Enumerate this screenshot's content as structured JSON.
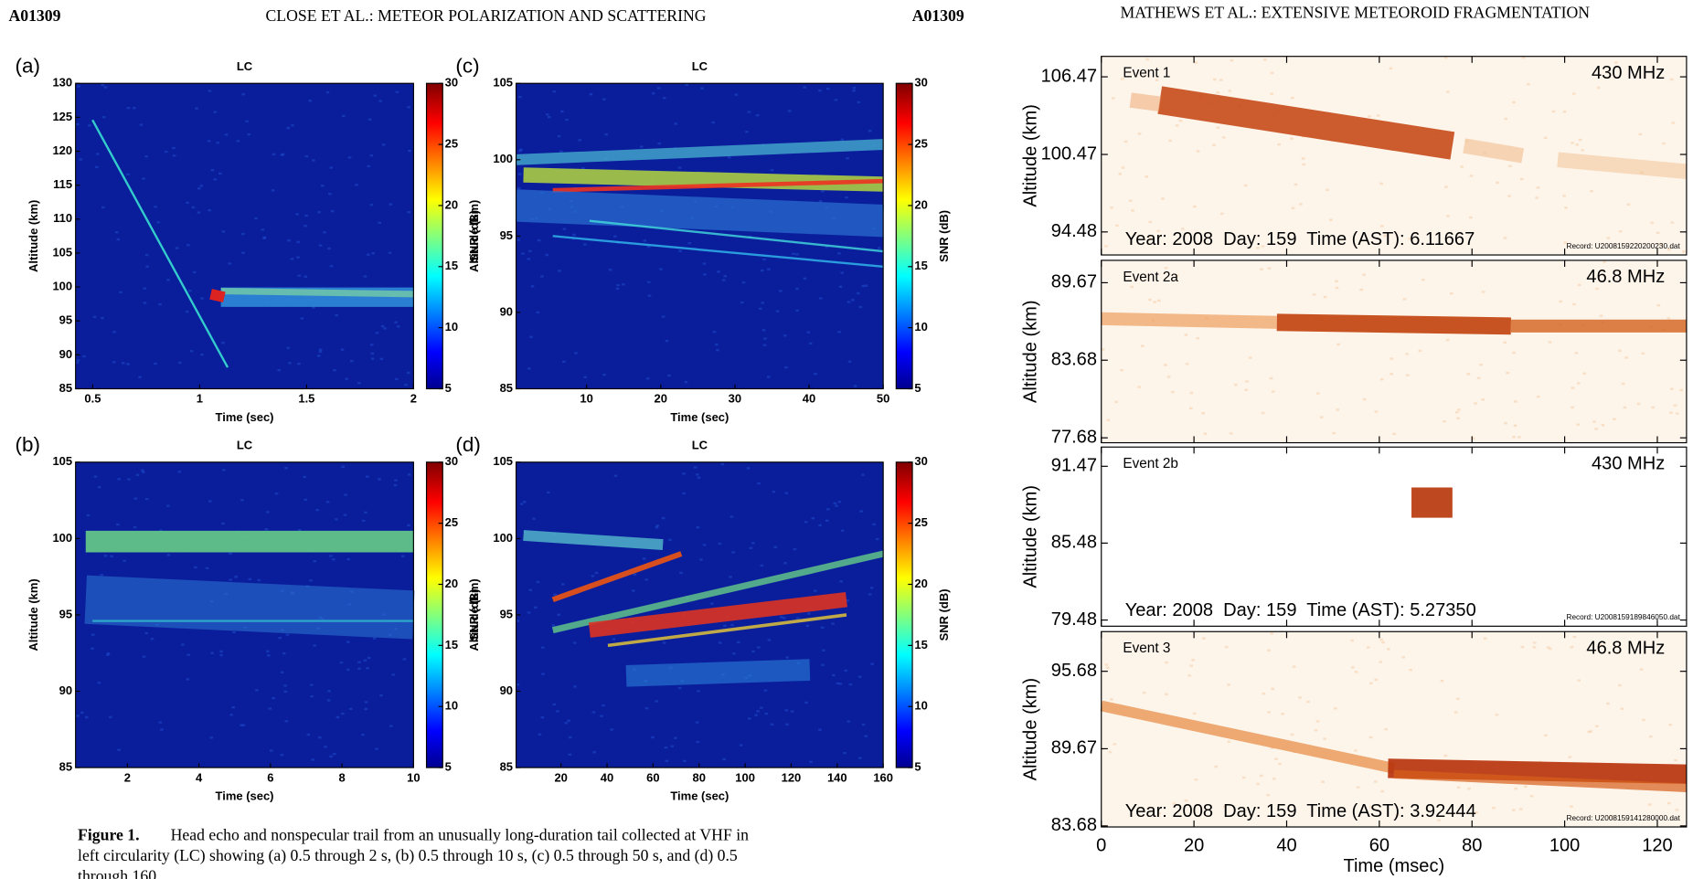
{
  "left_page": {
    "header": {
      "left": "A01309",
      "center": "CLOSE ET AL.: METEOR POLARIZATION AND SCATTERING",
      "right": "A01309"
    },
    "panels": [
      {
        "label": "(a)",
        "title": "LC",
        "xlabel": "Time (sec)",
        "ylabel": "Altitude (km)",
        "colorbar_label": "SNR (dB)",
        "xlim": [
          0.42,
          2
        ],
        "xticks": [
          0.5,
          1,
          1.5,
          2
        ],
        "ylim": [
          85,
          130
        ],
        "yticks": [
          85,
          90,
          95,
          100,
          105,
          110,
          115,
          120,
          125,
          130
        ],
        "clim": [
          5,
          30
        ],
        "cticks": [
          5,
          10,
          15,
          20,
          25,
          30
        ]
      },
      {
        "label": "(b)",
        "title": "LC",
        "xlabel": "Time (sec)",
        "ylabel": "Altitude (km)",
        "colorbar_label": "SNR (dB)",
        "xlim": [
          0.55,
          10
        ],
        "xticks": [
          2,
          4,
          6,
          8,
          10
        ],
        "ylim": [
          85,
          105
        ],
        "yticks": [
          85,
          90,
          95,
          100,
          105
        ],
        "clim": [
          5,
          30
        ],
        "cticks": [
          5,
          10,
          15,
          20,
          25,
          30
        ]
      },
      {
        "label": "(c)",
        "title": "LC",
        "xlabel": "Time (sec)",
        "ylabel": "Altitude (km)",
        "colorbar_label": "SNR (dB)",
        "xlim": [
          0.5,
          50
        ],
        "xticks": [
          10,
          20,
          30,
          40,
          50
        ],
        "ylim": [
          85,
          105
        ],
        "yticks": [
          85,
          90,
          95,
          100,
          105
        ],
        "clim": [
          5,
          30
        ],
        "cticks": [
          5,
          10,
          15,
          20,
          25,
          30
        ]
      },
      {
        "label": "(d)",
        "title": "LC",
        "xlabel": "Time (sec)",
        "ylabel": "Altitude (km)",
        "colorbar_label": "SNR (dB)",
        "xlim": [
          0.5,
          160
        ],
        "xticks": [
          20,
          40,
          60,
          80,
          100,
          120,
          140,
          160
        ],
        "ylim": [
          85,
          105
        ],
        "yticks": [
          85,
          90,
          95,
          100,
          105
        ],
        "clim": [
          5,
          30
        ],
        "cticks": [
          5,
          10,
          15,
          20,
          25,
          30
        ]
      }
    ],
    "caption": {
      "label": "Figure 1.",
      "lines": [
        "Head echo and nonspecular trail from an unusually long-duration tail collected at VHF in",
        "left circularity (LC) showing (a) 0.5 through 2 s, (b) 0.5 through 10 s, (c) 0.5 through 50 s, and (d) 0.5",
        "through 160"
      ]
    }
  },
  "right_page": {
    "header": "MATHEWS ET AL.: EXTENSIVE METEOROID FRAGMENTATION",
    "xlabel": "Time (msec)",
    "xlim": [
      0,
      126.3
    ],
    "xticks": [
      0,
      20,
      40,
      60,
      80,
      100,
      120
    ],
    "panels": [
      {
        "event": "Event 1",
        "frequency": "430 MHz",
        "ylabel": "Altitude (km)",
        "ylim": [
          92.7,
          108.05
        ],
        "yticks": [
          94.48,
          100.47,
          106.47
        ],
        "annotation": "Year: 2008  Day: 159  Time (AST): 6.11667",
        "record": "Record: U2008159220200230.dat"
      },
      {
        "event": "Event 2a",
        "frequency": "46.8 MHz",
        "ylabel": "Altitude (km)",
        "ylim": [
          77.3,
          91.4
        ],
        "yticks": [
          77.68,
          83.68,
          89.67
        ]
      },
      {
        "event": "Event 2b",
        "frequency": "430 MHz",
        "ylabel": "Altitude (km)",
        "ylim": [
          79,
          92.97
        ],
        "yticks": [
          79.48,
          85.48,
          91.47
        ],
        "annotation": "Year: 2008  Day: 159  Time (AST): 5.27350",
        "record": "Record: U2008159189846050.dat"
      },
      {
        "event": "Event 3",
        "frequency": "46.8 MHz",
        "ylabel": "Altitude (km)",
        "ylim": [
          83.6,
          98.76
        ],
        "yticks": [
          83.68,
          89.67,
          95.68
        ],
        "annotation": "Year: 2008  Day: 159  Time (AST): 3.92444",
        "record": "Record: U2008159141280000.dat"
      }
    ]
  }
}
